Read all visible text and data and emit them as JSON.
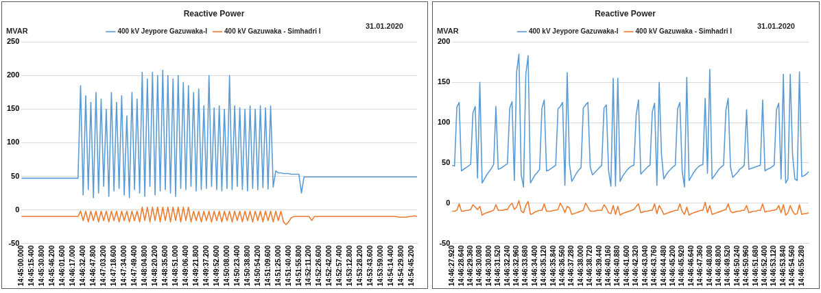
{
  "chart_data": [
    {
      "type": "line",
      "title": "Reactive Power",
      "ylabel": "MVAR",
      "annotations": [
        "31.01.2020"
      ],
      "legend": "top",
      "grid": "y",
      "marker": "none",
      "ylim": [
        -50,
        250
      ],
      "yticks": [
        -50,
        0,
        50,
        100,
        150,
        200,
        250
      ],
      "categories": [
        "14:45:00.000",
        null,
        null,
        null,
        "14:45:15.400",
        null,
        null,
        null,
        "14:45:30.800",
        null,
        null,
        null,
        "14:45:46.200",
        null,
        null,
        null,
        "14:46:01.600",
        null,
        null,
        null,
        "14:46:17.000",
        null,
        null,
        null,
        "14:46:32.400",
        null,
        null,
        null,
        "14:46:47.800",
        null,
        null,
        null,
        "14:47:03.200",
        null,
        null,
        null,
        "14:47:18.600",
        null,
        null,
        null,
        "14:47:34.000",
        null,
        null,
        null,
        "14:47:49.400",
        null,
        null,
        null,
        "14:48:04.800",
        null,
        null,
        null,
        "14:48:20.200",
        null,
        null,
        null,
        "14:48:35.600",
        null,
        null,
        null,
        "14:48:51.000",
        null,
        null,
        null,
        "14:49:06.400",
        null,
        null,
        null,
        "14:49:21.800",
        null,
        null,
        null,
        "14:49:37.200",
        null,
        null,
        null,
        "14:49:52.600",
        null,
        null,
        null,
        "14:50:08.000",
        null,
        null,
        null,
        "14:50:23.400",
        null,
        null,
        null,
        "14:50:38.800",
        null,
        null,
        null,
        "14:50:54.200",
        null,
        null,
        null,
        "14:51:09.600",
        null,
        null,
        null,
        "14:51:25.000",
        null,
        null,
        null,
        "14:51:40.400",
        null,
        null,
        null,
        "14:51:55.800",
        null,
        null,
        null,
        "14:52:11.200",
        null,
        null,
        null,
        "14:52:26.600",
        null,
        null,
        null,
        "14:52:42.000",
        null,
        null,
        null,
        "14:52:57.400",
        null,
        null,
        null,
        "14:53:12.800",
        null,
        null,
        null,
        "14:53:28.200",
        null,
        null,
        null,
        "14:53:43.600",
        null,
        null,
        null,
        "14:53:59.000",
        null,
        null,
        null,
        "14:54:14.400",
        null,
        null,
        null,
        "14:54:29.800",
        null,
        null,
        null,
        "14:54:45.200",
        null,
        null
      ],
      "series": [
        {
          "name": "400 kV Jeypore Gazuwaka-I",
          "color": "#5b9bd5",
          "values": [
            47,
            47,
            47,
            47,
            47,
            47,
            47,
            47,
            47,
            47,
            47,
            47,
            47,
            47,
            47,
            47,
            47,
            47,
            47,
            47,
            47,
            47,
            47,
            185,
            22,
            170,
            30,
            160,
            18,
            175,
            25,
            165,
            35,
            150,
            20,
            175,
            28,
            160,
            32,
            170,
            22,
            140,
            18,
            175,
            30,
            165,
            25,
            205,
            20,
            195,
            35,
            205,
            22,
            200,
            28,
            208,
            30,
            200,
            25,
            195,
            20,
            200,
            32,
            190,
            30,
            185,
            35,
            175,
            28,
            180,
            30,
            155,
            32,
            200,
            35,
            152,
            30,
            155,
            28,
            150,
            32,
            200,
            30,
            155,
            35,
            152,
            30,
            150,
            28,
            155,
            32,
            150,
            30,
            155,
            33,
            152,
            31,
            155,
            34,
            58,
            55,
            55,
            54,
            54,
            54,
            53,
            53,
            53,
            53,
            25,
            49,
            49,
            49,
            49,
            49,
            49,
            49,
            49,
            49,
            49,
            49,
            49,
            49,
            49,
            49,
            49,
            49,
            49,
            49,
            49,
            49,
            49,
            49,
            49,
            49,
            49,
            49,
            49,
            49,
            49,
            49,
            49,
            49,
            49,
            49,
            49,
            49,
            49,
            49,
            49,
            49,
            49,
            49,
            49,
            49
          ]
        },
        {
          "name": "400 kV Gazuwaka - Simhadri I",
          "color": "#ed7d31",
          "values": [
            -10,
            -10,
            -10,
            -10,
            -10,
            -10,
            -10,
            -10,
            -10,
            -10,
            -10,
            -10,
            -10,
            -10,
            -10,
            -10,
            -10,
            -10,
            -10,
            -10,
            -10,
            -10,
            -10,
            -2,
            -16,
            -2,
            -18,
            -2,
            -16,
            -2,
            -18,
            -2,
            -16,
            -2,
            -18,
            -2,
            -16,
            -2,
            -18,
            -2,
            -16,
            -2,
            -18,
            -2,
            -16,
            -2,
            -18,
            4,
            -16,
            4,
            -18,
            4,
            -16,
            4,
            -18,
            4,
            -16,
            4,
            -18,
            4,
            -16,
            4,
            -18,
            4,
            -16,
            4,
            -18,
            -2,
            -16,
            -2,
            -18,
            -2,
            -16,
            -2,
            -18,
            -2,
            -16,
            -2,
            -18,
            -2,
            -16,
            -2,
            -18,
            -2,
            -16,
            -2,
            -18,
            -2,
            -16,
            -2,
            -18,
            -2,
            -16,
            -2,
            -18,
            -2,
            -16,
            -2,
            -18,
            -2,
            -16,
            -2,
            -18,
            -22,
            -18,
            -12,
            -10,
            -10,
            -10,
            -10,
            -10,
            -10,
            -10,
            -16,
            -10,
            -10,
            -10,
            -10,
            -10,
            -10,
            -10,
            -10,
            -10,
            -10,
            -10,
            -10,
            -10,
            -10,
            -10,
            -10,
            -10,
            -10,
            -10,
            -10,
            -10,
            -10,
            -10,
            -10,
            -10,
            -10,
            -10,
            -10,
            -10,
            -10,
            -10,
            -10,
            -10,
            -11,
            -11,
            -11,
            -11,
            -10,
            -10,
            -9,
            -10
          ]
        }
      ]
    },
    {
      "type": "line",
      "title": "Reactive Power",
      "ylabel": "MVAR",
      "annotations": [
        "31.01.2020"
      ],
      "legend": "top",
      "grid": "y",
      "marker": "none",
      "ylim": [
        -50,
        200
      ],
      "yticks": [
        -50,
        0,
        50,
        100,
        150,
        200
      ],
      "categories": [
        "14:46:27.920",
        null,
        null,
        null,
        "14:46:28.640",
        null,
        null,
        null,
        "14:46:29.360",
        null,
        null,
        null,
        "14:46:30.080",
        null,
        null,
        null,
        "14:46:30.800",
        null,
        null,
        null,
        "14:46:31.520",
        null,
        null,
        null,
        "14:46:32.240",
        null,
        null,
        null,
        "14:46:32.960",
        null,
        null,
        null,
        "14:46:33.680",
        null,
        null,
        null,
        "14:46:34.400",
        null,
        null,
        null,
        "14:46:35.120",
        null,
        null,
        null,
        "14:46:35.840",
        null,
        null,
        null,
        "14:46:36.560",
        null,
        null,
        null,
        "14:46:37.280",
        null,
        null,
        null,
        "14:46:38.000",
        null,
        null,
        null,
        "14:46:38.720",
        null,
        null,
        null,
        "14:46:39.440",
        null,
        null,
        null,
        "14:46:40.160",
        null,
        null,
        null,
        "14:46:40.880",
        null,
        null,
        null,
        "14:46:41.600",
        null,
        null,
        null,
        "14:46:42.320",
        null,
        null,
        null,
        "14:46:43.040",
        null,
        null,
        null,
        "14:46:43.760",
        null,
        null,
        null,
        "14:46:44.480",
        null,
        null,
        null,
        "14:46:45.200",
        null,
        null,
        null,
        "14:46:45.920",
        null,
        null,
        null,
        "14:46:46.640",
        null,
        null,
        null,
        "14:46:47.360",
        null,
        null,
        null,
        "14:46:48.080",
        null,
        null,
        null,
        "14:46:48.800",
        null,
        null,
        null,
        "14:46:49.520",
        null,
        null,
        null,
        "14:46:50.240",
        null,
        null,
        null,
        "14:46:50.960",
        null,
        null,
        null,
        "14:46:51.680",
        null,
        null,
        null,
        "14:46:52.400",
        null,
        null,
        null,
        "14:46:53.120",
        null,
        null,
        null,
        "14:46:53.840",
        null,
        null,
        null,
        "14:46:54.560",
        null,
        null,
        null,
        "14:46:55.280",
        null,
        null,
        null
      ],
      "series": [
        {
          "name": "400 kV Jeypore Gazuwaka-I",
          "color": "#5b9bd5",
          "values": [
            47,
            46,
            119,
            125,
            40,
            42,
            44,
            46,
            48,
            112,
            120,
            31,
            150,
            25,
            30,
            35,
            39,
            43,
            48,
            120,
            42,
            43,
            45,
            47,
            49,
            118,
            126,
            28,
            163,
            185,
            35,
            20,
            160,
            183,
            25,
            30,
            35,
            38,
            42,
            118,
            128,
            40,
            41,
            43,
            45,
            47,
            117,
            120,
            125,
            22,
            162,
            48,
            27,
            32,
            37,
            41,
            44,
            118,
            122,
            125,
            45,
            35,
            38,
            41,
            44,
            47,
            118,
            122,
            40,
            21,
            155,
            21,
            155,
            27,
            33,
            37,
            41,
            44,
            46,
            47,
            110,
            128,
            36,
            39,
            42,
            45,
            47,
            113,
            124,
            22,
            150,
            60,
            30,
            35,
            39,
            42,
            45,
            47,
            117,
            125,
            40,
            20,
            156,
            28,
            33,
            38,
            42,
            45,
            47,
            48,
            130,
            37,
            166,
            30,
            34,
            38,
            42,
            45,
            47,
            115,
            130,
            45,
            32,
            35,
            38,
            42,
            44,
            47,
            116,
            42,
            43,
            44,
            45,
            46,
            47,
            128,
            40,
            42,
            43,
            45,
            47,
            116,
            124,
            30,
            160,
            25,
            30,
            160,
            60,
            30,
            28,
            163,
            33,
            34,
            36,
            39
          ]
        },
        {
          "name": "400 kV Gazuwaka - Simhadri I",
          "color": "#ed7d31",
          "values": [
            -10,
            -10,
            -9,
            -1,
            -10,
            -10,
            -9,
            -9,
            -8,
            -2,
            -5,
            -8,
            -4,
            -15,
            -13,
            -12,
            -11,
            -10,
            -9,
            -2,
            -9,
            -9,
            -9,
            -8,
            -8,
            -3,
            0,
            -8,
            -5,
            3,
            -10,
            -12,
            -3,
            2,
            -14,
            -13,
            -11,
            -10,
            -9,
            -9,
            -1,
            -10,
            -10,
            -10,
            -9,
            -9,
            -8,
            0,
            -5,
            -12,
            -4,
            -6,
            -14,
            -13,
            -12,
            -11,
            -10,
            -9,
            0,
            -5,
            -10,
            -10,
            -10,
            -9,
            -9,
            -9,
            -2,
            -6,
            -12,
            -13,
            -3,
            -14,
            -4,
            -15,
            -13,
            -12,
            -11,
            -10,
            -9,
            -8,
            -4,
            -1,
            -12,
            -11,
            -10,
            -10,
            -9,
            -9,
            -1,
            -13,
            -3,
            -8,
            -14,
            -13,
            -12,
            -11,
            -10,
            -9,
            -9,
            -1,
            -10,
            -14,
            -5,
            -15,
            -13,
            -12,
            -11,
            -10,
            -9,
            -9,
            1,
            -12,
            -3,
            -14,
            -13,
            -12,
            -11,
            -10,
            -9,
            -8,
            -1,
            -10,
            -12,
            -11,
            -10,
            -10,
            -9,
            -9,
            -3,
            -12,
            -11,
            -10,
            -10,
            -9,
            -9,
            -1,
            -11,
            -10,
            -10,
            -9,
            -9,
            -8,
            -3,
            -12,
            -2,
            -15,
            -12,
            -3,
            -10,
            -14,
            -13,
            -2,
            -14,
            -13,
            -13,
            -12
          ]
        }
      ]
    }
  ]
}
